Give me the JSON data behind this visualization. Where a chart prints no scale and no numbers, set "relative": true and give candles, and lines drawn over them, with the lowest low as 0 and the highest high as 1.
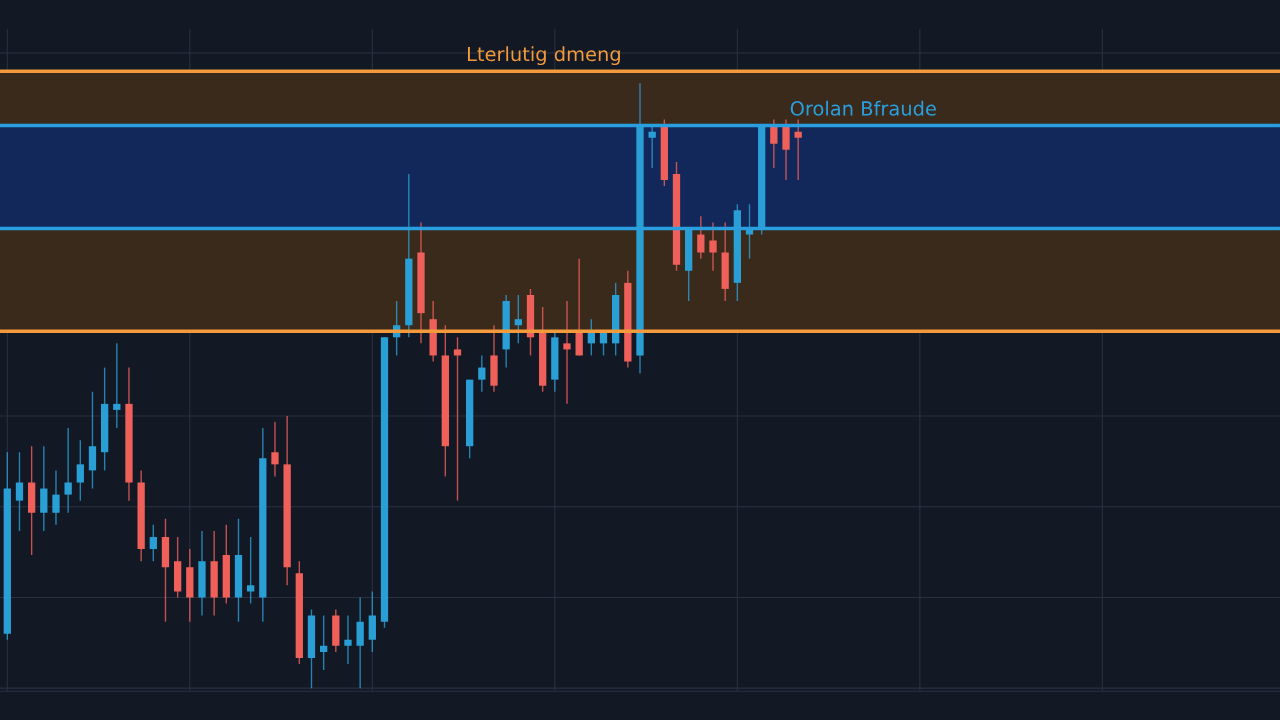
{
  "chart_data": {
    "type": "candlestick",
    "relative": true,
    "grid": true,
    "tick_labels": false,
    "categories": [
      null,
      null,
      null,
      null,
      null,
      null,
      null,
      null,
      null,
      null,
      null,
      null,
      null,
      null,
      null,
      null,
      null,
      null,
      null,
      null,
      null,
      null,
      null,
      null,
      null,
      null,
      null,
      null,
      null,
      null,
      null,
      null,
      null,
      null,
      null,
      null,
      null,
      null,
      null,
      null,
      null,
      null,
      null,
      null,
      null,
      null,
      null,
      null,
      null,
      null,
      null,
      null,
      null,
      null,
      null,
      null,
      null,
      null,
      null,
      null,
      null,
      null,
      null,
      null,
      null,
      null,
      null,
      null,
      null,
      null,
      null,
      null,
      null,
      null,
      null,
      null,
      null,
      null,
      null,
      null,
      null,
      null,
      null,
      null,
      null,
      null,
      null,
      null,
      null,
      null,
      null,
      null,
      null,
      null,
      null,
      null,
      null,
      null,
      null,
      null,
      null,
      null,
      null,
      null,
      null
    ],
    "ohlc": [
      [
        0.09,
        0.39,
        0.08,
        0.33
      ],
      [
        0.31,
        0.39,
        0.26,
        0.34
      ],
      [
        0.34,
        0.4,
        0.22,
        0.29
      ],
      [
        0.29,
        0.4,
        0.26,
        0.33
      ],
      [
        0.29,
        0.36,
        0.27,
        0.32
      ],
      [
        0.32,
        0.43,
        0.29,
        0.34
      ],
      [
        0.34,
        0.41,
        0.31,
        0.37
      ],
      [
        0.36,
        0.49,
        0.33,
        0.4
      ],
      [
        0.39,
        0.53,
        0.36,
        0.47
      ],
      [
        0.46,
        0.57,
        0.43,
        0.47
      ],
      [
        0.47,
        0.53,
        0.31,
        0.34
      ],
      [
        0.34,
        0.36,
        0.21,
        0.23
      ],
      [
        0.23,
        0.27,
        0.21,
        0.25
      ],
      [
        0.25,
        0.28,
        0.11,
        0.2
      ],
      [
        0.21,
        0.25,
        0.15,
        0.16
      ],
      [
        0.2,
        0.23,
        0.11,
        0.15
      ],
      [
        0.15,
        0.26,
        0.12,
        0.21
      ],
      [
        0.21,
        0.26,
        0.12,
        0.15
      ],
      [
        0.22,
        0.27,
        0.14,
        0.15
      ],
      [
        0.15,
        0.28,
        0.11,
        0.22
      ],
      [
        0.16,
        0.25,
        0.14,
        0.17
      ],
      [
        0.15,
        0.43,
        0.11,
        0.38
      ],
      [
        0.39,
        0.44,
        0.35,
        0.37
      ],
      [
        0.37,
        0.45,
        0.17,
        0.2
      ],
      [
        0.19,
        0.21,
        0.04,
        0.05
      ],
      [
        0.05,
        0.13,
        0.0,
        0.12
      ],
      [
        0.06,
        0.12,
        0.03,
        0.07
      ],
      [
        0.12,
        0.13,
        0.06,
        0.07
      ],
      [
        0.07,
        0.12,
        0.04,
        0.08
      ],
      [
        0.07,
        0.15,
        0.0,
        0.11
      ],
      [
        0.08,
        0.16,
        0.06,
        0.12
      ],
      [
        0.11,
        0.58,
        0.1,
        0.58
      ],
      [
        0.58,
        0.64,
        0.55,
        0.6
      ],
      [
        0.6,
        0.85,
        0.58,
        0.71
      ],
      [
        0.72,
        0.77,
        0.57,
        0.62
      ],
      [
        0.61,
        0.64,
        0.54,
        0.55
      ],
      [
        0.55,
        0.6,
        0.35,
        0.4
      ],
      [
        0.56,
        0.58,
        0.31,
        0.55
      ],
      [
        0.4,
        0.51,
        0.38,
        0.51
      ],
      [
        0.51,
        0.55,
        0.49,
        0.53
      ],
      [
        0.55,
        0.6,
        0.49,
        0.5
      ],
      [
        0.56,
        0.65,
        0.53,
        0.64
      ],
      [
        0.6,
        0.65,
        0.57,
        0.61
      ],
      [
        0.65,
        0.66,
        0.55,
        0.58
      ],
      [
        0.59,
        0.63,
        0.49,
        0.5
      ],
      [
        0.51,
        0.59,
        0.49,
        0.58
      ],
      [
        0.57,
        0.64,
        0.47,
        0.56
      ],
      [
        0.59,
        0.71,
        0.55,
        0.55
      ],
      [
        0.57,
        0.61,
        0.55,
        0.59
      ],
      [
        0.57,
        0.59,
        0.55,
        0.59
      ],
      [
        0.57,
        0.67,
        0.55,
        0.65
      ],
      [
        0.67,
        0.69,
        0.53,
        0.54
      ],
      [
        0.55,
        1.0,
        0.52,
        0.93
      ],
      [
        0.91,
        0.93,
        0.86,
        0.92
      ],
      [
        0.93,
        0.94,
        0.83,
        0.84
      ],
      [
        0.85,
        0.87,
        0.69,
        0.7
      ],
      [
        0.69,
        0.76,
        0.64,
        0.76
      ],
      [
        0.75,
        0.78,
        0.71,
        0.72
      ],
      [
        0.74,
        0.77,
        0.69,
        0.72
      ],
      [
        0.72,
        0.77,
        0.64,
        0.66
      ],
      [
        0.67,
        0.8,
        0.64,
        0.79
      ],
      [
        0.75,
        0.8,
        0.71,
        0.76
      ],
      [
        0.76,
        0.93,
        0.75,
        0.93
      ],
      [
        0.93,
        0.94,
        0.86,
        0.9
      ],
      [
        0.93,
        0.94,
        0.84,
        0.89
      ],
      [
        0.92,
        0.94,
        0.84,
        0.91
      ],
      null,
      null,
      null,
      null,
      null,
      null,
      null,
      null,
      null,
      null,
      null,
      null,
      null,
      null,
      null,
      null,
      null,
      null,
      null,
      null,
      null,
      null,
      null,
      null,
      null,
      null,
      null,
      null,
      null,
      null,
      null,
      null,
      null,
      null,
      null,
      null,
      null,
      null,
      null
    ],
    "colors": [
      "#2a9fd6",
      "#2a9fd6",
      "#f0605a",
      "#2a9fd6",
      "#2a9fd6",
      "#2a9fd6",
      "#2a9fd6",
      "#2a9fd6",
      "#2a9fd6",
      "#2a9fd6",
      "#f0605a",
      "#f0605a",
      "#2a9fd6",
      "#f0605a",
      "#f0605a",
      "#f0605a",
      "#2a9fd6",
      "#f0605a",
      "#f0605a",
      "#2a9fd6",
      "#2a9fd6",
      "#2a9fd6",
      "#f0605a",
      "#f0605a",
      "#f0605a",
      "#2a9fd6",
      "#2a9fd6",
      "#f0605a",
      "#2a9fd6",
      "#2a9fd6",
      "#2a9fd6",
      "#2a9fd6",
      "#2a9fd6",
      "#2a9fd6",
      "#f0605a",
      "#f0605a",
      "#f0605a",
      "#f0605a",
      "#2a9fd6",
      "#2a9fd6",
      "#f0605a",
      "#2a9fd6",
      "#2a9fd6",
      "#f0605a",
      "#f0605a",
      "#2a9fd6",
      "#f0605a",
      "#f0605a",
      "#2a9fd6",
      "#2a9fd6",
      "#2a9fd6",
      "#f0605a",
      "#2a9fd6",
      "#2a9fd6",
      "#f0605a",
      "#f0605a",
      "#2a9fd6",
      "#f0605a",
      "#f0605a",
      "#f0605a",
      "#2a9fd6",
      "#2a9fd6",
      "#2a9fd6",
      "#f0605a",
      "#f0605a",
      "#f0605a",
      null,
      null,
      null,
      null,
      null,
      null,
      null,
      null,
      null,
      null,
      null,
      null,
      null,
      null,
      null,
      null,
      null,
      null,
      null,
      null,
      null,
      null,
      null,
      null,
      null,
      null,
      null,
      null,
      null,
      null,
      null,
      null,
      null,
      null,
      null,
      null,
      null,
      null,
      null
    ],
    "bands": [
      {
        "axis": "y",
        "from": 0.59,
        "to": 1.02,
        "color": "#3a2a1c"
      },
      {
        "axis": "y",
        "from": 0.76,
        "to": 0.93,
        "color": "#13285a"
      }
    ],
    "ref_lines": [
      {
        "axis": "y",
        "value": 1.02,
        "label": "Lterlutig dmeng",
        "color": "#f39a3c"
      },
      {
        "axis": "y",
        "value": 0.59,
        "color": "#f39a3c"
      },
      {
        "axis": "y",
        "value": 0.93,
        "label": "Orolan Bfraude",
        "color": "#2a9fe0"
      },
      {
        "axis": "y",
        "value": 0.76,
        "color": "#2a9fe0"
      }
    ]
  }
}
